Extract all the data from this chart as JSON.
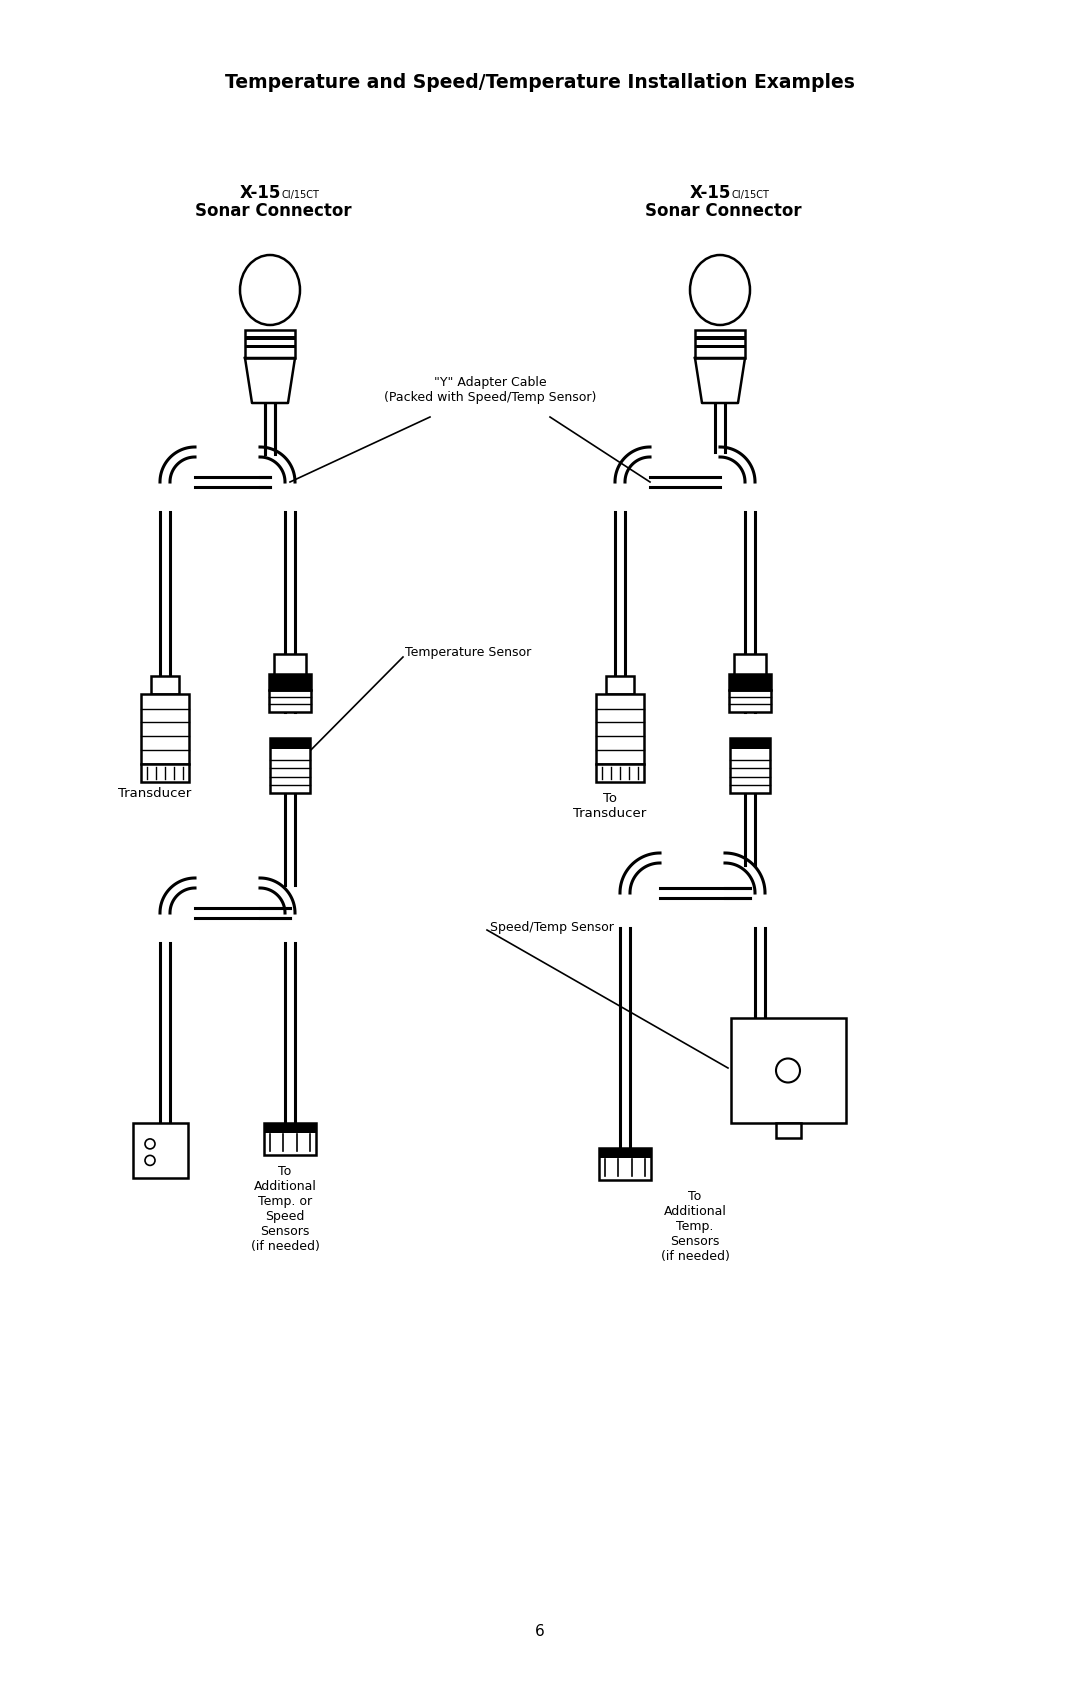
{
  "title": "Temperature and Speed/Temperature Installation Examples",
  "bg_color": "#ffffff",
  "text_color": "#000000",
  "title_fontsize": 13.5,
  "page_number": "6",
  "y_adapter_label": "\"Y\" Adapter Cable\n(Packed with Speed/Temp Sensor)",
  "to_transducer_left": "To\nTransducer",
  "to_transducer_right": "To\nTransducer",
  "temp_sensor_label": "Temperature Sensor",
  "speed_temp_label": "Speed/Temp Sensor",
  "to_additional_left": "To\nAdditional\nTemp. or\nSpeed\nSensors\n(if needed)",
  "to_additional_right": "To\nAdditional\nTemp.\nSensors\n(if needed)",
  "lw_cable": 2.2,
  "lw_connector": 1.8
}
